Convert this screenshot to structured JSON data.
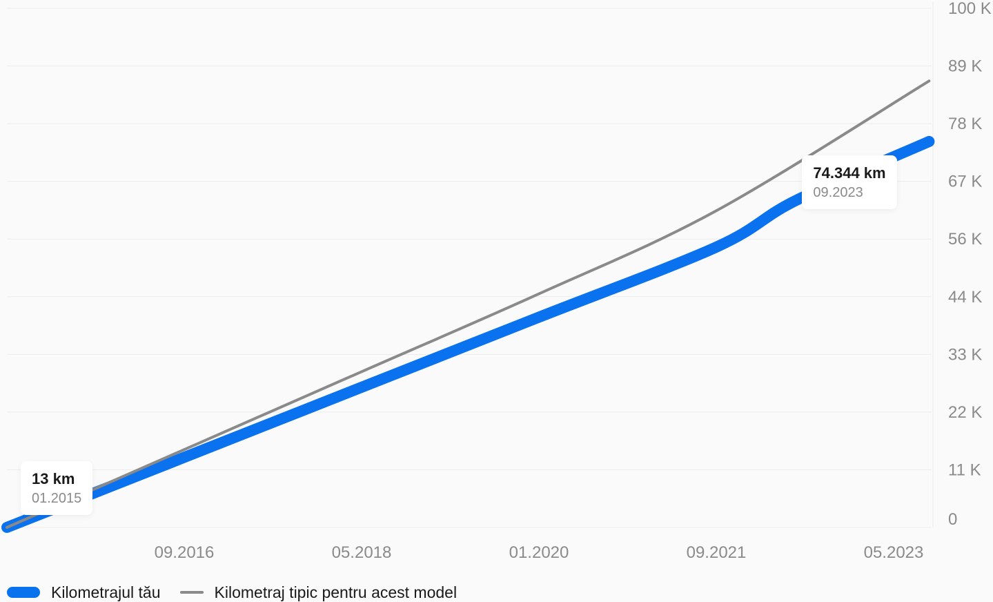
{
  "chart_data": {
    "type": "line",
    "title": "",
    "xlabel": "",
    "ylabel": "",
    "x_tick_labels": [
      "09.2016",
      "05.2018",
      "01.2020",
      "09.2021",
      "05.2023"
    ],
    "y_tick_labels": [
      "100 K",
      "89 K",
      "78 K",
      "67 K",
      "56 K",
      "44 K",
      "33 K",
      "22 K",
      "11 K",
      "0"
    ],
    "ylim": [
      0,
      100000
    ],
    "grid": true,
    "legend_position": "bottom-left",
    "series": [
      {
        "name": "Kilometrajul tău",
        "color": "#0a72ee",
        "points": [
          {
            "x": "01.2015",
            "y": 13
          },
          {
            "x": "09.2016",
            "y": 13500
          },
          {
            "x": "05.2018",
            "y": 27000
          },
          {
            "x": "01.2020",
            "y": 40500
          },
          {
            "x": "09.2021",
            "y": 54000
          },
          {
            "x": "06.2022",
            "y": 63000
          },
          {
            "x": "09.2023",
            "y": 74344
          }
        ]
      },
      {
        "name": "Kilometraj tipic pentru acest model",
        "color": "#8a8a8a",
        "points": [
          {
            "x": "01.2015",
            "y": 0
          },
          {
            "x": "09.2016",
            "y": 15000
          },
          {
            "x": "05.2018",
            "y": 30000
          },
          {
            "x": "01.2020",
            "y": 45000
          },
          {
            "x": "09.2021",
            "y": 61000
          },
          {
            "x": "09.2023",
            "y": 86000
          }
        ]
      }
    ],
    "annotations": [
      {
        "value": "13 km",
        "date": "01.2015"
      },
      {
        "value": "74.344 km",
        "date": "09.2023"
      }
    ]
  }
}
